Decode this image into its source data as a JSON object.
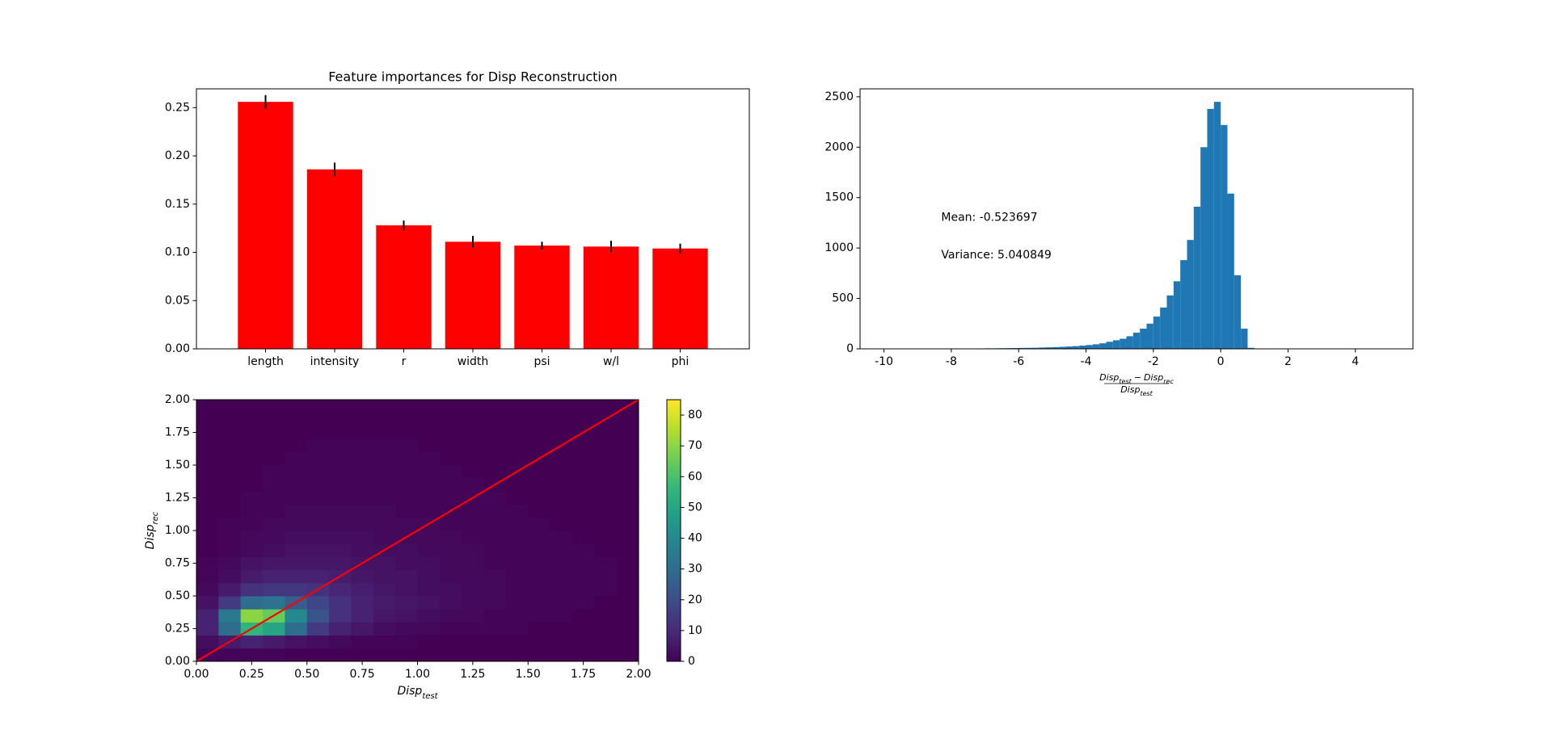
{
  "chart_data": [
    {
      "type": "bar",
      "title": "Feature importances for Disp Reconstruction",
      "categories": [
        "length",
        "intensity",
        "r",
        "width",
        "psi",
        "w/l",
        "phi"
      ],
      "values": [
        0.256,
        0.186,
        0.128,
        0.111,
        0.107,
        0.106,
        0.104
      ],
      "yerr": [
        0.007,
        0.007,
        0.005,
        0.006,
        0.004,
        0.006,
        0.005
      ],
      "color": "#ff0000",
      "ecolor": "#000000",
      "xlim": [
        -1,
        7
      ],
      "ylim": [
        0,
        0.2695
      ],
      "yticks": [
        {
          "value": 0,
          "label": "0.00"
        },
        {
          "value": 0.05,
          "label": "0.05"
        },
        {
          "value": 0.1,
          "label": "0.10"
        },
        {
          "value": 0.15,
          "label": "0.15"
        },
        {
          "value": 0.2,
          "label": "0.20"
        },
        {
          "value": 0.25,
          "label": "0.25"
        }
      ]
    },
    {
      "type": "histogram",
      "color": "#1f77b4",
      "bins": [
        -9.4,
        -9.2,
        -9.0,
        -8.8,
        -8.6,
        -8.4,
        -8.2,
        -8.0,
        -7.8,
        -7.6,
        -7.4,
        -7.2,
        -7.0,
        -6.8,
        -6.6,
        -6.4,
        -6.2,
        -6.0,
        -5.8,
        -5.6,
        -5.4,
        -5.2,
        -5.0,
        -4.8,
        -4.6,
        -4.4,
        -4.2,
        -4.0,
        -3.8,
        -3.6,
        -3.4,
        -3.2,
        -3.0,
        -2.8,
        -2.6,
        -2.4,
        -2.2,
        -2.0,
        -1.8,
        -1.6,
        -1.4,
        -1.2,
        -1.0,
        -0.8,
        -0.6,
        -0.4,
        -0.2,
        0.0,
        0.2,
        0.4,
        0.6,
        0.8,
        1.0
      ],
      "values": [
        1,
        1,
        1,
        2,
        2,
        2,
        2,
        3,
        3,
        3,
        4,
        4,
        5,
        5,
        6,
        7,
        8,
        9,
        10,
        11,
        13,
        15,
        17,
        20,
        23,
        27,
        32,
        38,
        45,
        55,
        70,
        85,
        100,
        125,
        160,
        200,
        250,
        320,
        410,
        530,
        670,
        880,
        1080,
        1410,
        2000,
        2380,
        2450,
        2220,
        1540,
        730,
        200,
        10
      ],
      "xlim": [
        -10.71,
        5.71
      ],
      "ylim": [
        0,
        2579
      ],
      "xticks": [
        -10,
        -8,
        -6,
        -4,
        -2,
        0,
        2,
        4
      ],
      "yticks": [
        0,
        500,
        1000,
        1500,
        2000,
        2500
      ],
      "annotations": [
        "Mean: -0.523697",
        "Variance: 5.040849"
      ],
      "xlabel": {
        "numerator": {
          "a": "Disp",
          "a_sub": "test",
          "op": "−",
          "b": "Disp",
          "b_sub": "rec"
        },
        "denominator": {
          "a": "Disp",
          "a_sub": "test"
        }
      }
    },
    {
      "type": "heatmap",
      "colormap": "viridis",
      "xlim": [
        0,
        2
      ],
      "ylim": [
        0,
        2
      ],
      "zlim": [
        0,
        85
      ],
      "xticks": [
        {
          "value": 0,
          "label": "0.00"
        },
        {
          "value": 0.25,
          "label": "0.25"
        },
        {
          "value": 0.5,
          "label": "0.50"
        },
        {
          "value": 0.75,
          "label": "0.75"
        },
        {
          "value": 1,
          "label": "1.00"
        },
        {
          "value": 1.25,
          "label": "1.25"
        },
        {
          "value": 1.5,
          "label": "1.50"
        },
        {
          "value": 1.75,
          "label": "1.75"
        },
        {
          "value": 2,
          "label": "2.00"
        }
      ],
      "yticks": [
        {
          "value": 0,
          "label": "0.00"
        },
        {
          "value": 0.25,
          "label": "0.25"
        },
        {
          "value": 0.5,
          "label": "0.50"
        },
        {
          "value": 0.75,
          "label": "0.75"
        },
        {
          "value": 1,
          "label": "1.00"
        },
        {
          "value": 1.25,
          "label": "1.25"
        },
        {
          "value": 1.5,
          "label": "1.50"
        },
        {
          "value": 1.75,
          "label": "1.75"
        },
        {
          "value": 2,
          "label": "2.00"
        }
      ],
      "zticks": [
        0,
        10,
        20,
        30,
        40,
        50,
        60,
        70,
        80
      ],
      "xlabel": {
        "a": "Disp",
        "a_sub": "test"
      },
      "ylabel": {
        "a": "Disp",
        "a_sub": "rec"
      },
      "line": {
        "x": [
          0,
          2
        ],
        "y": [
          0,
          2
        ],
        "color": "#ff0000"
      },
      "z": [
        [
          1,
          1,
          1,
          1,
          0,
          0,
          0,
          0,
          0,
          0,
          0,
          0,
          0,
          0,
          0,
          0,
          0,
          0,
          0,
          0
        ],
        [
          3,
          6,
          8,
          6,
          4,
          3,
          2,
          1,
          1,
          1,
          0,
          0,
          0,
          0,
          0,
          0,
          0,
          0,
          0,
          0
        ],
        [
          8,
          30,
          55,
          50,
          30,
          15,
          8,
          5,
          3,
          2,
          2,
          1,
          1,
          1,
          1,
          0,
          0,
          0,
          0,
          0
        ],
        [
          8,
          35,
          70,
          65,
          40,
          22,
          12,
          8,
          5,
          4,
          3,
          2,
          2,
          1,
          1,
          1,
          1,
          0,
          0,
          0
        ],
        [
          4,
          15,
          30,
          32,
          25,
          18,
          12,
          8,
          6,
          5,
          4,
          3,
          2,
          2,
          1,
          1,
          1,
          1,
          0,
          0
        ],
        [
          2,
          6,
          12,
          14,
          14,
          12,
          9,
          7,
          5,
          4,
          3,
          3,
          2,
          2,
          1,
          1,
          1,
          1,
          1,
          0
        ],
        [
          1,
          3,
          6,
          8,
          8,
          8,
          7,
          5,
          4,
          4,
          3,
          2,
          2,
          2,
          1,
          1,
          1,
          1,
          1,
          0
        ],
        [
          1,
          2,
          4,
          5,
          5,
          5,
          5,
          4,
          4,
          3,
          3,
          2,
          2,
          1,
          1,
          1,
          1,
          1,
          1,
          0
        ],
        [
          0,
          1,
          2,
          3,
          4,
          4,
          4,
          3,
          3,
          3,
          2,
          2,
          2,
          1,
          1,
          1,
          1,
          1,
          0,
          0
        ],
        [
          0,
          1,
          2,
          2,
          3,
          3,
          3,
          3,
          2,
          2,
          2,
          2,
          1,
          1,
          1,
          1,
          1,
          0,
          0,
          0
        ],
        [
          0,
          1,
          1,
          2,
          2,
          2,
          2,
          2,
          2,
          2,
          2,
          1,
          1,
          1,
          1,
          1,
          0,
          0,
          0,
          0
        ],
        [
          0,
          0,
          1,
          1,
          2,
          2,
          2,
          2,
          2,
          1,
          1,
          1,
          1,
          1,
          1,
          0,
          0,
          0,
          0,
          0
        ],
        [
          0,
          0,
          1,
          1,
          1,
          1,
          1,
          1,
          1,
          1,
          1,
          1,
          1,
          1,
          0,
          0,
          0,
          0,
          0,
          0
        ],
        [
          0,
          0,
          0,
          1,
          1,
          1,
          1,
          1,
          1,
          1,
          1,
          1,
          1,
          0,
          0,
          0,
          0,
          0,
          0,
          0
        ],
        [
          0,
          0,
          0,
          1,
          1,
          1,
          1,
          1,
          1,
          1,
          1,
          1,
          0,
          0,
          0,
          0,
          0,
          0,
          0,
          0
        ],
        [
          0,
          0,
          0,
          0,
          1,
          1,
          1,
          1,
          1,
          1,
          1,
          0,
          0,
          0,
          0,
          0,
          0,
          0,
          0,
          0
        ],
        [
          0,
          0,
          0,
          0,
          0,
          1,
          1,
          1,
          1,
          1,
          0,
          0,
          0,
          0,
          0,
          0,
          0,
          0,
          0,
          0
        ],
        [
          0,
          0,
          0,
          0,
          0,
          0,
          0,
          0,
          0,
          0,
          0,
          0,
          0,
          0,
          0,
          0,
          0,
          0,
          0,
          0
        ],
        [
          0,
          0,
          0,
          0,
          0,
          0,
          0,
          0,
          0,
          0,
          0,
          0,
          0,
          0,
          0,
          0,
          0,
          0,
          0,
          0
        ],
        [
          0,
          0,
          0,
          0,
          0,
          0,
          0,
          0,
          0,
          0,
          0,
          0,
          0,
          0,
          0,
          0,
          0,
          0,
          0,
          0
        ]
      ]
    }
  ]
}
